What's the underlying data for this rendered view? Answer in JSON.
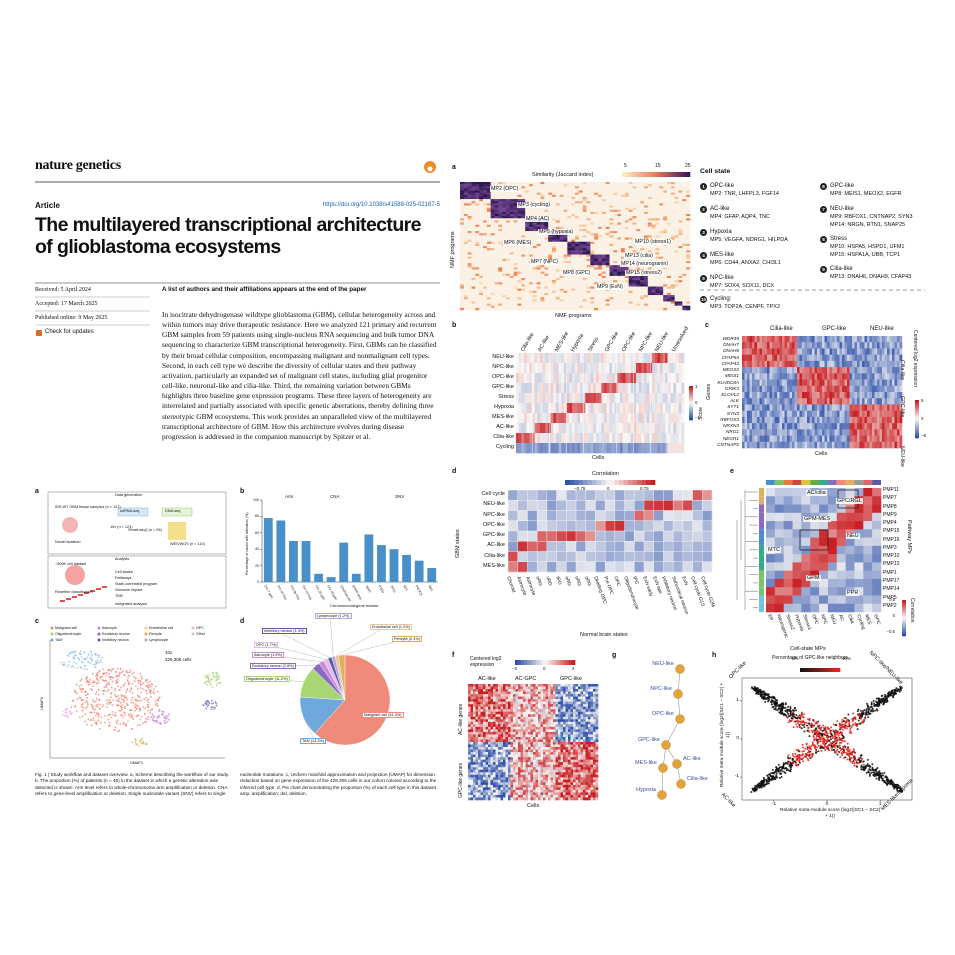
{
  "header": {
    "journal": "nature genetics",
    "article_type": "Article",
    "doi": "https://doi.org/10.1038/s41588-025-02167-5",
    "title": "The multilayered transcriptional architecture of glioblastoma ecosystems",
    "received": "Received: 5 April 2024",
    "accepted": "Accepted: 17 March 2025",
    "published": "Published online: 9 May 2025",
    "check": "Check for updates",
    "authors": "A list of authors and their affiliations appears at the end of the paper"
  },
  "abstract": "In isocitrate dehydrogenase wildtype glioblastoma (GBM), cellular heterogeneity across and within tumors may drive therapeutic resistance. Here we analyzed 121 primary and recurrent GBM samples from 59 patients using single-nucleus RNA sequencing and bulk tumor DNA sequencing to characterize GBM transcriptional heterogeneity. First, GBMs can be classified by their broad cellular composition, encompassing malignant and nonmalignant cell types. Second, in each cell type we describe the diversity of cellular states and their pathway activation, particularly an expanded set of malignant cell states, including glial progenitor cell-like, neuronal-like and cilia-like. Third, the remaining variation between GBMs highlights three baseline gene expression programs. These three layers of heterogeneity are interrelated and partially associated with specific genetic aberrations, thereby defining three stereotypic GBM ecosystems. This work provides an unparalleled view of the multilayered transcriptional architecture of GBM. How this architecture evolves during disease progression is addressed in the companion manuscript by Spitzer et al.",
  "figure1": {
    "panel_labels": [
      "a",
      "b",
      "c",
      "d"
    ],
    "a": {
      "texts": [
        "Data generation",
        "IDH WT GBM tissue samples (n = 121)",
        "Nuclei isolation",
        "snRNA-seq",
        "DNA-seq",
        "10x (n = 121)",
        "Smart-seq2 (n = 54)",
        "WES/WGS (n = 110)",
        "Analysis",
        "~500K cell dataset",
        "Cell states",
        "Pathways",
        "State-correlated program",
        "Genomic impact",
        "TME",
        "Redefine classification",
        "Integrated analysis"
      ]
    },
    "b": {
      "type": "bar",
      "groups": [
        "Arm",
        "CNA",
        "SNV"
      ],
      "categories": [
        "Chr 7 gain",
        "Chr 10 loss",
        "Chr 9p loss",
        "Chr 13 loss",
        "Chr 20 gain",
        "Chr 19 gain",
        "CDKN2A del",
        "EGFR amp",
        "TERT",
        "PTEN",
        "TP53",
        "NF1",
        "PIK3CA",
        "RB1"
      ],
      "values": [
        78,
        75,
        50,
        50,
        10,
        6,
        48,
        10,
        58,
        45,
        40,
        33,
        26,
        17
      ],
      "color": "#4a90c8",
      "ylim": [
        0,
        100
      ],
      "yticks": [
        0,
        20,
        40,
        60,
        80,
        100
      ],
      "ylabel": "Percentage of cases with alteration (%)",
      "xlabel": "Chromosomal/gene feature"
    },
    "c": {
      "legend": [
        "Malignant cell",
        "Astrocyte",
        "Endothelial cell",
        "OPC",
        "Oligodendrocyte",
        "Excitatory neuron",
        "Pericyte",
        "Other",
        "TAM",
        "Inhibitory neuron",
        "Lymphocyte"
      ],
      "platform": "10x",
      "cells": "429,305 cells",
      "xlabel": "UMAP1",
      "ylabel": "UMAP2"
    },
    "d": {
      "type": "pie",
      "values": [
        2.4,
        61.2,
        14.3,
        11.2,
        2.8,
        1.9,
        1.7,
        1.4,
        1.2,
        1.2
      ],
      "value_labels": [
        "Pericyte (2.4%)",
        "Malignant cell (61.2%)",
        "TAM (14.3%)",
        "Oligodendrocyte (11.2%)",
        "Excitatory neuron (2.8%)",
        "Astrocyte (1.9%)",
        "OPC (1.7%)",
        "Inhibitory neuron (1.4%)",
        "Lymphocyte (1.2%)",
        "Endothelial cell (1.2%)"
      ],
      "colors": [
        "#e0b060",
        "#f08a7a",
        "#6fa8dc",
        "#a8d672",
        "#8a6bbf",
        "#c98bd9",
        "#e7b9e8",
        "#5a5aa8",
        "#b7a3d9",
        "#e8c7a0"
      ]
    },
    "caption": [
      "Fig. 1 | Study workflow and dataset overview. a, Scheme describing the workflow of our study. b, The proportion (%) of patients (n = 46) in the dataset in which a genetic alteration was detected is shown. Arm level refers to whole-chromosome arm amplification or deletion. CNA refers to gene-level amplification or deletion. Single nucleotide variant (SNV) refers to single",
      "nucleotide mutations. c, Uniform manifold approximation and projection (UMAP) for dimension reduction based on gene expression of the 429,305 cells in our cohort colored according to the inferred cell type. d, Pie chart demonstrating the proportion (%) of each cell type in this dataset. amp, amplification; del, deletion."
    ]
  },
  "figure2": {
    "panel_labels": [
      "a",
      "b",
      "c",
      "d",
      "e",
      "f",
      "g",
      "h"
    ],
    "a": {
      "legend_title": "Similarity (Jaccard index)",
      "legend_ticks": [
        "5",
        "15",
        "25"
      ],
      "programs": [
        "MP2 (OPC)",
        "MP3 (cycling)",
        "MP4 (AC)",
        "MP5 (hypoxia)",
        "MP6 (MES)",
        "MP7 (NPC)",
        "MP8 (GPC)",
        "MP9 (ExN)",
        "MP10 (stress1)",
        "MP13 (cilia)",
        "MP14 (neurogranin)",
        "MP15 (stress2)"
      ],
      "xlabel": "NMF programs",
      "ylabel": "NMF programs"
    },
    "cell_state": {
      "title": "Cell state",
      "items": [
        {
          "number": "1",
          "name": "OPC-like",
          "lines": [
            "MP2: TNR, LHFPL3, FGF14"
          ]
        },
        {
          "number": "2",
          "name": "AC-like",
          "lines": [
            "MP4: GFAP, AQP4, TNC"
          ]
        },
        {
          "number": "3",
          "name": "Hypoxia",
          "lines": [
            "MP5: VEGFA, NDRG1, HILPDA"
          ]
        },
        {
          "number": "4",
          "name": "MES-like",
          "lines": [
            "MP6: CD44, ANXA2, CHI3L1"
          ]
        },
        {
          "number": "5",
          "name": "NPC-like",
          "lines": [
            "MP7: SOX4, SOX11, DCX"
          ]
        },
        {
          "number": "6",
          "name": "GPC-like",
          "lines": [
            "MP8: MEIS1, MEOX2, EGFR"
          ]
        },
        {
          "number": "7",
          "name": "NEU-like",
          "lines": [
            "MP9: RBFOX1, CNTNAP2, SYN3",
            "MP14: NRGN, RTN1, SNAP25"
          ]
        },
        {
          "number": "8",
          "name": "Stress",
          "lines": [
            "MP10: HSPA5, HSPD1, UFM1",
            "MP15: HSPA1A, UBB, TCP1"
          ]
        },
        {
          "number": "9",
          "name": "Cilia-like",
          "lines": [
            "MP13: DNAH6, DNAH9, CFAP43"
          ]
        },
        {
          "number": "10",
          "name": "Cycling:",
          "lines": [
            "MP3: TOP2A, CENPF, TPX2"
          ]
        }
      ]
    },
    "b": {
      "rows": [
        "NEU-like",
        "NPC-like",
        "OPC-like",
        "GPC-like",
        "Stress",
        "Hypoxia",
        "MES-like",
        "AC-like",
        "Cilia-like",
        "Cycling"
      ],
      "columns": [
        "Cilia-like",
        "AC-like",
        "MES-like",
        "Hypoxia",
        "Stress",
        "GPC-like",
        "OPC-like",
        "NPC-like",
        "NEU-like",
        "Unresolved"
      ],
      "xlabel": "Cells",
      "legend_title": "Score",
      "legend_ticks": [
        "1",
        "0",
        "−1"
      ]
    },
    "c": {
      "groups": [
        "Cilia-like",
        "GPC-like",
        "NEU-like"
      ],
      "genes": [
        "WDR49",
        "DNAH7",
        "DNAH6",
        "CFAP54",
        "CFAP43",
        "MEOX2",
        "MEIS1",
        "KLHDC8A",
        "GRIK3",
        "ELOVL2",
        "ALK",
        "SYT1",
        "SYN3",
        "RBFOX3",
        "NRXN3",
        "NRG1",
        "NEGR1",
        "CNTNAP2"
      ],
      "row_groups": [
        "Cilia-like",
        "GPC-like",
        "NEU-like"
      ],
      "ylabel": "Genes",
      "xlabel": "Cells",
      "legend_title": "Centered log2 expression",
      "legend_ticks": [
        "5",
        "0",
        "−5"
      ]
    },
    "d": {
      "legend_title": "Correlation",
      "legend_ticks": [
        "−0.75",
        "0",
        "0.75"
      ],
      "rows": [
        "Cell cycle",
        "NEU-like",
        "NPC-like",
        "OPC-like",
        "GPC-like",
        "AC-like",
        "Cilia-like",
        "MES-like"
      ],
      "columns": [
        "Choroid",
        "Astrocyte",
        "Astrocyte",
        "oRG",
        "vRG",
        "tRG",
        "oRG",
        "oRG",
        "oRG",
        "Dividing OPC",
        "Pre OPC",
        "OPC",
        "Oligodendrocyte",
        "IPC",
        "ExN early",
        "ExN late",
        "Inhibitory neuron",
        "Subcortical neuron",
        "ExN",
        "Cell cycle G1S",
        "Cell cycle G2M"
      ],
      "ylabel": "GBM states",
      "xlabel": "Normal brain states"
    },
    "e": {
      "rows": [
        "PMP11",
        "PMP7",
        "PMP8",
        "PMP9",
        "PMP4",
        "PMP15",
        "PMP16",
        "PMP3",
        "PMP10",
        "PMP13",
        "PMP1",
        "PMP17",
        "PMP14",
        "PMP5",
        "PMP2"
      ],
      "columns": [
        "EP",
        "Neurogenic",
        "Stress2",
        "Hypoxia",
        "Stress1",
        "OPC",
        "NPC",
        "NEU",
        "AC",
        "Cilia",
        "Cycling",
        "MES",
        "GPC"
      ],
      "annotations": [
        "AC/cilia",
        "GPC/RGL",
        "GPM-MES",
        "NEU",
        "MTC",
        "GPM",
        "PPR"
      ],
      "ylabel": "Pathway MPs",
      "xlabel": "Cell-state MPs",
      "legend_title": "Correlation",
      "legend_ticks": [
        "0.5",
        "0",
        "−0.5"
      ]
    },
    "f": {
      "legend_title": "Centered log2 expression",
      "legend_ticks": [
        "−2",
        "0",
        "2"
      ],
      "groups": [
        "AC-like",
        "AC-GPC",
        "GPC-like"
      ],
      "row_groups": [
        "AC-like genes",
        "GPC-like genes"
      ],
      "xlabel": "Cells"
    },
    "g": {
      "nodes": [
        "NEU-like",
        "NPC-like",
        "OPC-like",
        "GPC-like",
        "MES-like",
        "AC-like",
        "Cilia-like",
        "Hypoxia"
      ]
    },
    "h": {
      "legend_title": "Percentage of GPC-like neighbors",
      "legend_ticks": [
        "0%",
        "40%"
      ],
      "corners": [
        "OPC-like",
        "NPC-like/NEU-like",
        "AC-like",
        "MES-like/hypoxia"
      ],
      "xticks": [
        -1,
        0,
        1
      ],
      "yticks": [
        -1,
        0,
        1
      ],
      "xlim": [
        -1.6,
        1.6
      ],
      "ylim": [
        -1.6,
        1.6
      ],
      "ylabel": "Relative meta-module score (log2(|SC1 − SC2| + 1))",
      "xlabel": "Relative meta-module score (log2(|SC1 − SC2| + 1))"
    }
  }
}
